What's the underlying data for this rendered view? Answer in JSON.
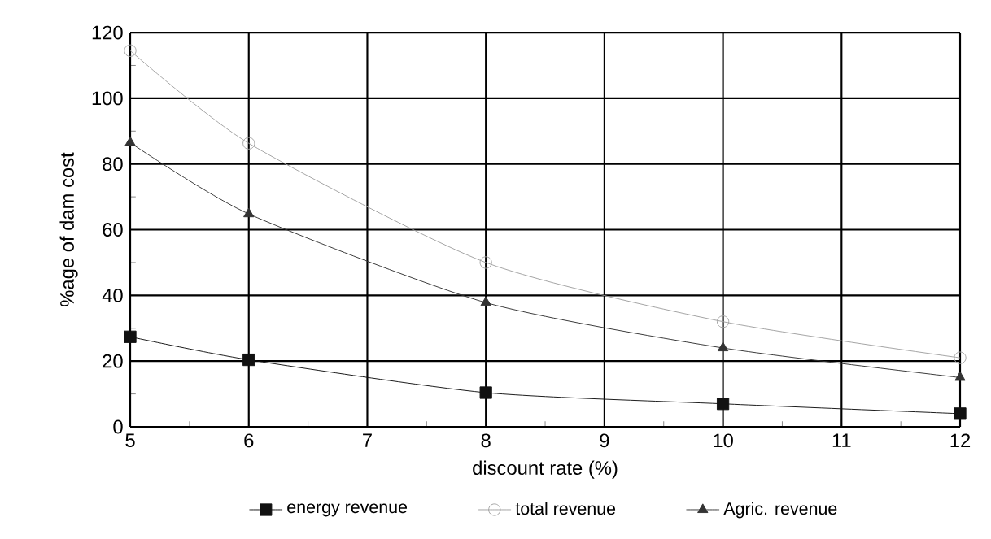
{
  "chart_data": {
    "type": "line",
    "xlabel": "discount rate (%)",
    "ylabel": "%age of dam cost",
    "x": [
      5,
      6,
      8,
      10,
      12
    ],
    "series": [
      {
        "name": "energy revenue",
        "color": "#111111",
        "marker": "square",
        "values": [
          27.4,
          20.4,
          10.4,
          7,
          4
        ]
      },
      {
        "name": "total revenue",
        "color": "#a0a0a0",
        "marker": "circle",
        "values": [
          114.5,
          86.3,
          50,
          32,
          21
        ]
      },
      {
        "name": "Agric. revenue",
        "color": "#333333",
        "marker": "triangle",
        "values": [
          86.5,
          64.8,
          37.8,
          24,
          15
        ]
      }
    ],
    "xlim": [
      5,
      12
    ],
    "xticks": [
      5,
      6,
      7,
      8,
      9,
      10,
      11,
      12
    ],
    "ylim": [
      0,
      120
    ],
    "yticks": [
      0,
      20,
      40,
      60,
      80,
      100,
      120
    ],
    "grid": true,
    "legend": "bottom"
  }
}
